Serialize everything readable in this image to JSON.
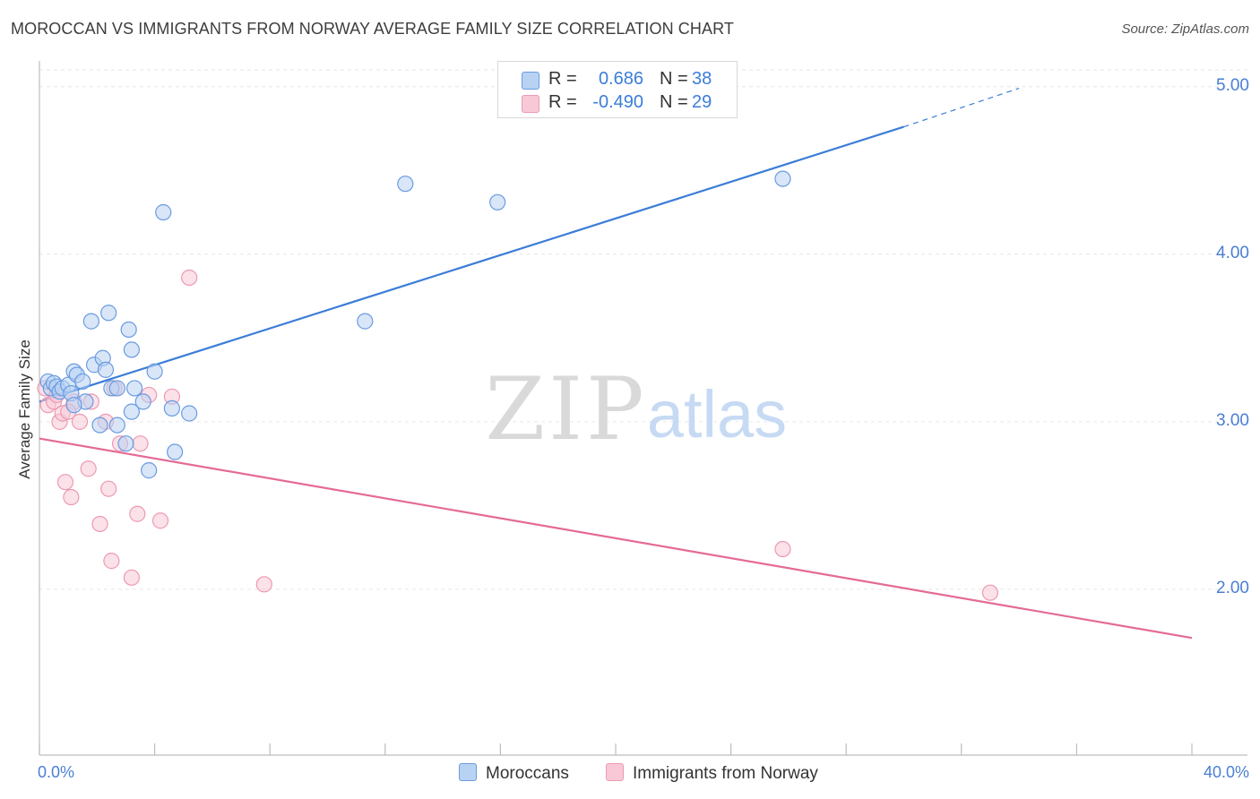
{
  "title": "MOROCCAN VS IMMIGRANTS FROM NORWAY AVERAGE FAMILY SIZE CORRELATION CHART",
  "source": "Source: ZipAtlas.com",
  "watermark": {
    "zip": "ZIP",
    "atlas": "atlas"
  },
  "colors": {
    "blue_fill": "#b8d2f3",
    "blue_stroke": "#6a9be0",
    "blue_line": "#3b7dd8",
    "pink_fill": "#f8c8d6",
    "pink_stroke": "#ec9ab2",
    "pink_line": "#e46a97",
    "accent_text": "#4a7fd4",
    "grid": "#e6e6e6"
  },
  "legend": {
    "rows": [
      {
        "r_label": "R =",
        "r_value": "0.686",
        "n_label": "N =",
        "n_value": "38",
        "color": "#b8d2f3",
        "stroke": "#6a9be0"
      },
      {
        "r_label": "R =",
        "r_value": "-0.490",
        "n_label": "N =",
        "n_value": "29",
        "color": "#f8c8d6",
        "stroke": "#ec9ab2"
      }
    ]
  },
  "bottom_legend": {
    "moroccans": "Moroccans",
    "norway": "Immigrants from Norway"
  },
  "chart_data": {
    "type": "scatter",
    "title": "MOROCCAN VS IMMIGRANTS FROM NORWAY AVERAGE FAMILY SIZE CORRELATION CHART",
    "xlabel": "",
    "ylabel": "Average Family Size",
    "xlim": [
      0,
      40
    ],
    "ylim": [
      1.0,
      5.1
    ],
    "x_tick_labels": {
      "left": "0.0%",
      "right": "40.0%"
    },
    "y_ticks": [
      2.0,
      3.0,
      4.0,
      5.0
    ],
    "y_tick_labels": [
      "2.00",
      "3.00",
      "4.00",
      "5.00"
    ],
    "grid": true,
    "series": [
      {
        "name": "Moroccans",
        "r": 0.686,
        "n": 38,
        "points": [
          [
            0.3,
            3.24
          ],
          [
            0.4,
            3.2
          ],
          [
            0.5,
            3.23
          ],
          [
            0.6,
            3.21
          ],
          [
            0.7,
            3.18
          ],
          [
            0.8,
            3.2
          ],
          [
            1.0,
            3.22
          ],
          [
            1.1,
            3.17
          ],
          [
            1.2,
            3.3
          ],
          [
            1.3,
            3.28
          ],
          [
            1.5,
            3.24
          ],
          [
            1.6,
            3.12
          ],
          [
            1.8,
            3.6
          ],
          [
            1.9,
            3.34
          ],
          [
            2.2,
            3.38
          ],
          [
            2.3,
            3.31
          ],
          [
            2.4,
            3.65
          ],
          [
            2.5,
            3.2
          ],
          [
            2.7,
            3.2
          ],
          [
            3.1,
            3.55
          ],
          [
            3.2,
            3.43
          ],
          [
            3.3,
            3.2
          ],
          [
            3.6,
            3.12
          ],
          [
            4.0,
            3.3
          ],
          [
            4.3,
            4.25
          ],
          [
            4.7,
            2.82
          ],
          [
            5.2,
            3.05
          ],
          [
            2.1,
            2.98
          ],
          [
            2.7,
            2.98
          ],
          [
            3.0,
            2.87
          ],
          [
            3.8,
            2.71
          ],
          [
            3.2,
            3.06
          ],
          [
            4.6,
            3.08
          ],
          [
            11.3,
            3.6
          ],
          [
            12.7,
            4.42
          ],
          [
            15.9,
            4.31
          ],
          [
            25.8,
            4.45
          ],
          [
            1.2,
            3.1
          ]
        ],
        "trend": {
          "x0": 0,
          "y0": 3.12,
          "x1": 30.0,
          "y1": 4.76,
          "dashed_to_x": 34.0,
          "dashed_to_y": 4.99
        }
      },
      {
        "name": "Immigrants from Norway",
        "r": -0.49,
        "n": 29,
        "points": [
          [
            0.2,
            3.2
          ],
          [
            0.3,
            3.1
          ],
          [
            0.5,
            3.12
          ],
          [
            0.7,
            3.0
          ],
          [
            0.8,
            3.05
          ],
          [
            0.9,
            2.64
          ],
          [
            1.1,
            2.55
          ],
          [
            1.2,
            3.12
          ],
          [
            1.4,
            3.0
          ],
          [
            1.7,
            2.72
          ],
          [
            1.8,
            3.12
          ],
          [
            2.1,
            2.39
          ],
          [
            2.3,
            3.0
          ],
          [
            2.4,
            2.6
          ],
          [
            2.5,
            2.17
          ],
          [
            2.8,
            2.87
          ],
          [
            3.2,
            2.07
          ],
          [
            3.4,
            2.45
          ],
          [
            3.5,
            2.87
          ],
          [
            3.8,
            3.16
          ],
          [
            4.2,
            2.41
          ],
          [
            4.6,
            3.15
          ],
          [
            5.2,
            3.86
          ],
          [
            7.8,
            2.03
          ],
          [
            25.8,
            2.24
          ],
          [
            33.0,
            1.98
          ],
          [
            1.0,
            3.06
          ],
          [
            2.6,
            3.2
          ],
          [
            0.6,
            3.16
          ]
        ],
        "trend": {
          "x0": 0,
          "y0": 2.9,
          "x1": 40.0,
          "y1": 1.71
        }
      }
    ]
  }
}
